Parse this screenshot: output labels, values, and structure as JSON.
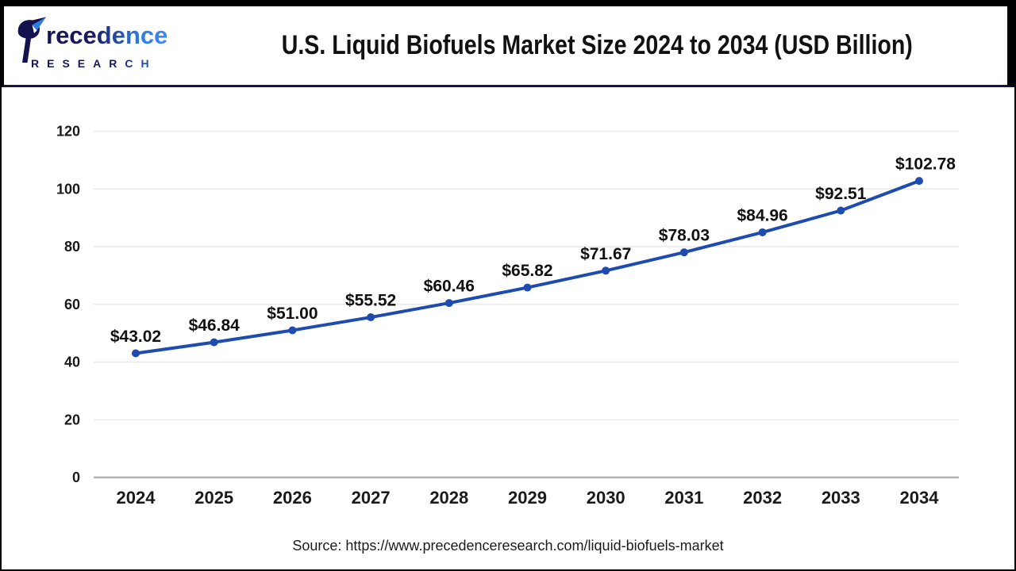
{
  "header": {
    "logo": {
      "name": "Precedence",
      "subtitle": "RESEARCH"
    },
    "title": "U.S. Liquid Biofuels Market Size 2024 to 2034 (USD Billion)"
  },
  "chart_data": {
    "type": "line",
    "title": "U.S. Liquid Biofuels Market Size 2024 to 2034 (USD Billion)",
    "categories": [
      "2024",
      "2025",
      "2026",
      "2027",
      "2028",
      "2029",
      "2030",
      "2031",
      "2032",
      "2033",
      "2034"
    ],
    "values": [
      43.02,
      46.84,
      51.0,
      55.52,
      60.46,
      65.82,
      71.67,
      78.03,
      84.96,
      92.51,
      102.78
    ],
    "data_labels": [
      "$43.02",
      "$46.84",
      "$51.00",
      "$55.52",
      "$60.46",
      "$65.82",
      "$71.67",
      "$78.03",
      "$84.96",
      "$92.51",
      "$102.78"
    ],
    "xlabel": "",
    "ylabel": "",
    "ylim": [
      0,
      120
    ],
    "yticks": [
      0,
      20,
      40,
      60,
      80,
      100,
      120
    ],
    "grid": true,
    "legend": false,
    "line_color": "#1d4bb0",
    "marker_color": "#1d4bb0",
    "label_color": "#111111",
    "axis_label_color": "#1a1a1a",
    "gridline_color": "#e9e9e9",
    "zeroline_color": "#b3b3b3"
  },
  "footer": {
    "source": "Source: https://www.precedenceresearch.com/liquid-biofuels-market"
  },
  "colors": {
    "brand_navy": "#141452",
    "brand_blue": "#2f7de2",
    "header_separator": "#15153c",
    "line": "#1d4bb0"
  }
}
